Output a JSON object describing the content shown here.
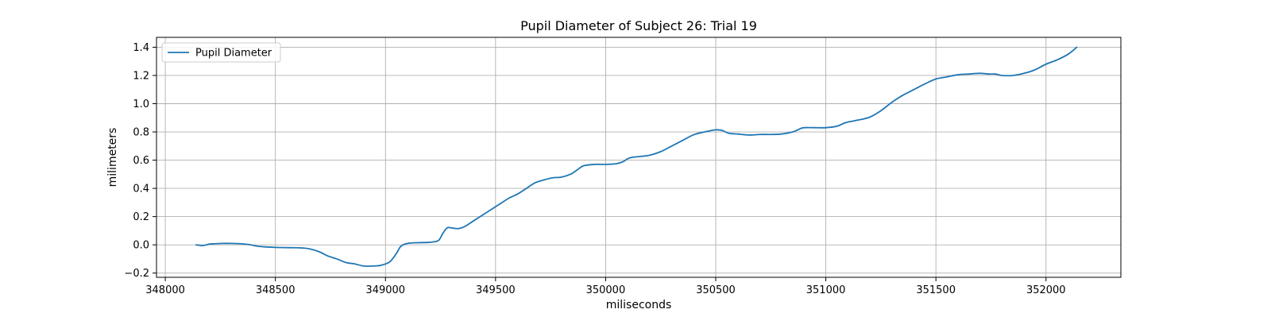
{
  "chart_data": {
    "type": "line",
    "title": "Pupil Diameter of Subject 26: Trial 19",
    "xlabel": "miliseconds",
    "ylabel": "milimeters",
    "xlim": [
      347960,
      352340
    ],
    "ylim": [
      -0.23,
      1.47
    ],
    "x_ticks": [
      348000,
      348500,
      349000,
      349500,
      350000,
      350500,
      351000,
      351500,
      352000
    ],
    "y_ticks": [
      -0.2,
      0.0,
      0.2,
      0.4,
      0.6,
      0.8,
      1.0,
      1.2,
      1.4
    ],
    "x_tick_labels": [
      "348000",
      "348500",
      "349000",
      "349500",
      "350000",
      "350500",
      "351000",
      "351500",
      "352000"
    ],
    "y_tick_labels": [
      "−0.2",
      "0.0",
      "0.2",
      "0.4",
      "0.6",
      "0.8",
      "1.0",
      "1.2",
      "1.4"
    ],
    "grid": true,
    "legend_position": "top-left",
    "series": [
      {
        "name": "Pupil Diameter",
        "color": "#1f77b4",
        "x": [
          348140,
          348170,
          348200,
          348230,
          348260,
          348300,
          348340,
          348380,
          348420,
          348460,
          348500,
          348560,
          348620,
          348660,
          348700,
          348740,
          348780,
          348820,
          348860,
          348900,
          348940,
          348980,
          349020,
          349050,
          349070,
          349100,
          349140,
          349200,
          349240,
          349260,
          349280,
          349300,
          349330,
          349360,
          349400,
          349440,
          349480,
          349520,
          349560,
          349600,
          349640,
          349680,
          349720,
          349760,
          349800,
          349840,
          349870,
          349900,
          349950,
          350000,
          350050,
          350080,
          350100,
          350120,
          350150,
          350200,
          350250,
          350300,
          350350,
          350400,
          350450,
          350500,
          350530,
          350560,
          350600,
          350630,
          350660,
          350700,
          350750,
          350800,
          350850,
          350880,
          350900,
          350950,
          351000,
          351050,
          351080,
          351100,
          351150,
          351200,
          351250,
          351300,
          351350,
          351400,
          351450,
          351500,
          351550,
          351600,
          351650,
          351700,
          351740,
          351770,
          351800,
          351850,
          351900,
          351950,
          352000,
          352050,
          352100,
          352140
        ],
        "y": [
          0.0,
          -0.005,
          0.005,
          0.008,
          0.01,
          0.01,
          0.008,
          0.002,
          -0.01,
          -0.015,
          -0.018,
          -0.02,
          -0.022,
          -0.03,
          -0.05,
          -0.08,
          -0.1,
          -0.125,
          -0.135,
          -0.15,
          -0.15,
          -0.145,
          -0.12,
          -0.06,
          -0.01,
          0.01,
          0.015,
          0.018,
          0.03,
          0.08,
          0.12,
          0.12,
          0.115,
          0.13,
          0.17,
          0.21,
          0.25,
          0.29,
          0.33,
          0.36,
          0.4,
          0.44,
          0.46,
          0.475,
          0.48,
          0.5,
          0.53,
          0.56,
          0.57,
          0.57,
          0.575,
          0.59,
          0.61,
          0.62,
          0.625,
          0.635,
          0.66,
          0.7,
          0.74,
          0.78,
          0.8,
          0.815,
          0.81,
          0.79,
          0.785,
          0.78,
          0.778,
          0.782,
          0.782,
          0.785,
          0.8,
          0.82,
          0.83,
          0.83,
          0.83,
          0.84,
          0.86,
          0.87,
          0.885,
          0.905,
          0.95,
          1.01,
          1.06,
          1.1,
          1.14,
          1.175,
          1.19,
          1.205,
          1.21,
          1.215,
          1.21,
          1.21,
          1.2,
          1.2,
          1.215,
          1.24,
          1.28,
          1.31,
          1.35,
          1.4
        ]
      }
    ]
  }
}
